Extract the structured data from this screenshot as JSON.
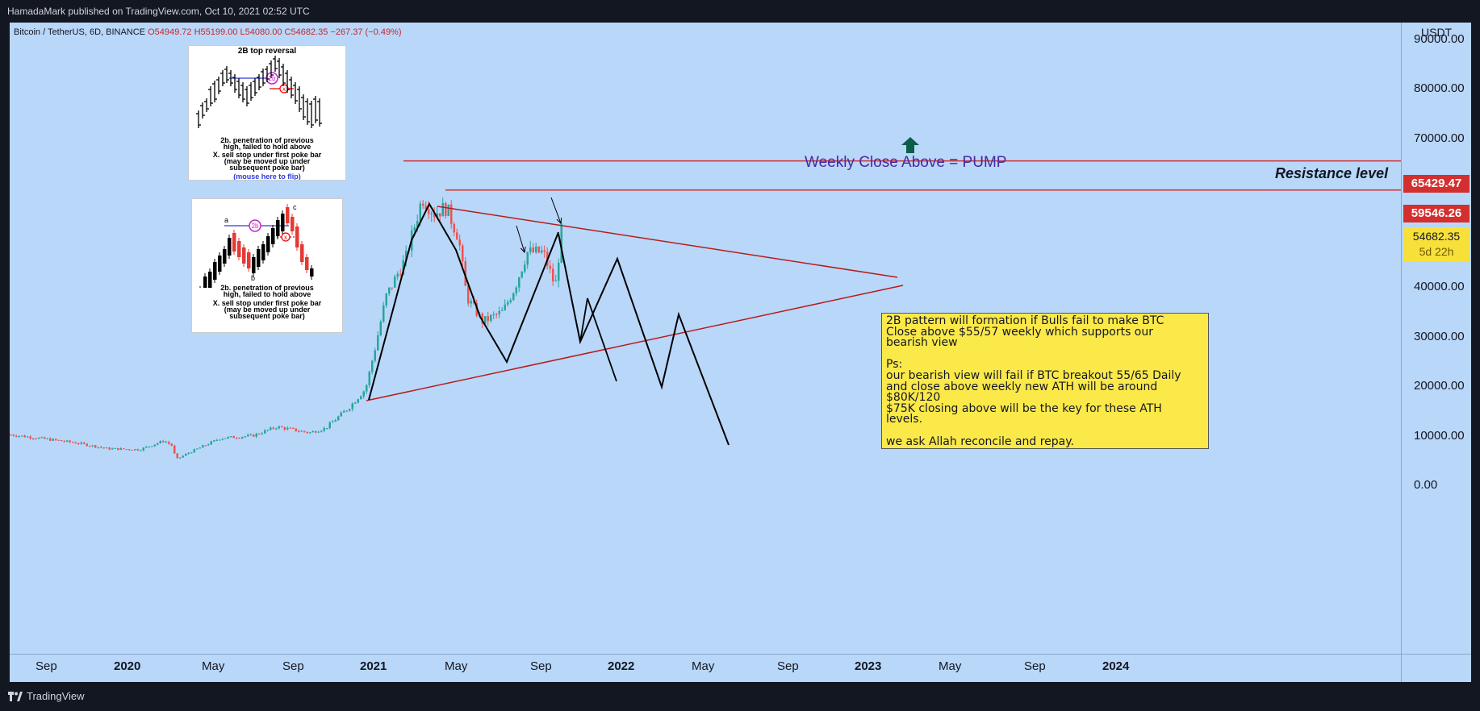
{
  "publisher_line": "HamadaMark published on TradingView.com, Oct 10, 2021 02:52 UTC",
  "symbol": {
    "name": "Bitcoin / TetherUS, 6D, BINANCE",
    "open": "O54949.72",
    "high": "H55199.00",
    "low": "L54080.00",
    "close": "C54682.35",
    "change": "−267.37 (−0.49%)"
  },
  "currency": "USDT",
  "price_ticks": [
    "90000.00",
    "80000.00",
    "70000.00",
    "60000.00",
    "50000.00",
    "40000.00",
    "30000.00",
    "20000.00",
    "10000.00",
    "0.00"
  ],
  "price_tags": {
    "resistance_1": "65429.47",
    "resistance_2": "59546.26",
    "current_price": "54682.35",
    "countdown": "5d 22h"
  },
  "time_labels": [
    "Sep",
    "2020",
    "May",
    "Sep",
    "2021",
    "May",
    "Sep",
    "2022",
    "May",
    "Sep",
    "2023",
    "May",
    "Sep",
    "2024"
  ],
  "annotations": {
    "pump_text": "Weekly Close Above = PUMP",
    "resistance_text": "Resistance level"
  },
  "note": {
    "lines": [
      "2B pattern will formation if Bulls fail to make BTC",
      "Close above $55/57 weekly which supports our",
      "bearish view",
      "",
      "Ps:",
      "our bearish view will fail if BTC breakout 55/65 Daily",
      "and close above weekly new ATH will be around",
      "$80K/120",
      "$75K closing above will be the key for these ATH",
      "levels.",
      "",
      "we ask Allah reconcile and repay."
    ]
  },
  "inset_top": {
    "title": "2B top reversal",
    "marker_2b": "2b",
    "marker_x": "x",
    "caption_1": "2b. penetration of previous",
    "caption_2": "high, failed to hold above",
    "caption_3": "X. sell stop under first poke bar",
    "caption_4": "(may be moved up under",
    "caption_5": "subsequent poke bar)",
    "flip_text": "(mouse here to flip)"
  },
  "inset_bottom": {
    "label_a": "a",
    "label_b": "b",
    "label_c": "c",
    "marker_2b": "2b",
    "marker_x": "x",
    "caption_1": "2b. penetration of previous",
    "caption_2": "high, failed to hold above",
    "caption_3": "X. sell stop under first poke bar",
    "caption_4": "(may be moved up under",
    "caption_5": "subsequent poke bar)"
  },
  "brand": "TradingView",
  "colors": {
    "background": "#b9d7f9",
    "bull": "#26a69a",
    "bear": "#ef5350",
    "resistance_line": "#d32f2f",
    "triangle_line": "#b71c1c",
    "note_bg": "#fbe94a",
    "pump_arrow": "#0b5e4a"
  },
  "chart_data": {
    "type": "line",
    "title": "Bitcoin / TetherUS, 6D, BINANCE",
    "ylabel": "USDT",
    "ylim": [
      -10000,
      100000
    ],
    "series": [
      {
        "values_x": [
          "2019-07",
          "2019-09",
          "2019-11",
          "2020-01",
          "2020-03",
          "2020-05",
          "2020-07",
          "2020-09",
          "2020-11",
          "2021-01",
          "2021-02",
          "2021-04",
          "2021-05",
          "2021-07",
          "2021-09",
          "2021-10"
        ],
        "values": [
          10500,
          9500,
          8000,
          7500,
          6000,
          9000,
          10000,
          11500,
          15000,
          30000,
          47000,
          61000,
          38000,
          32000,
          47000,
          54682
        ]
      }
    ],
    "horizontal_levels": [
      65429.47,
      59546.26
    ],
    "projection_path": [
      {
        "x": "2021-10",
        "y": 54682
      },
      {
        "x": "2021-11",
        "y": 34000
      },
      {
        "x": "2022-01",
        "y": 50000
      },
      {
        "x": "2022-04",
        "y": 25000
      },
      {
        "x": "2022-04-15",
        "y": 39000
      },
      {
        "x": "2022-07",
        "y": 13000
      }
    ]
  }
}
